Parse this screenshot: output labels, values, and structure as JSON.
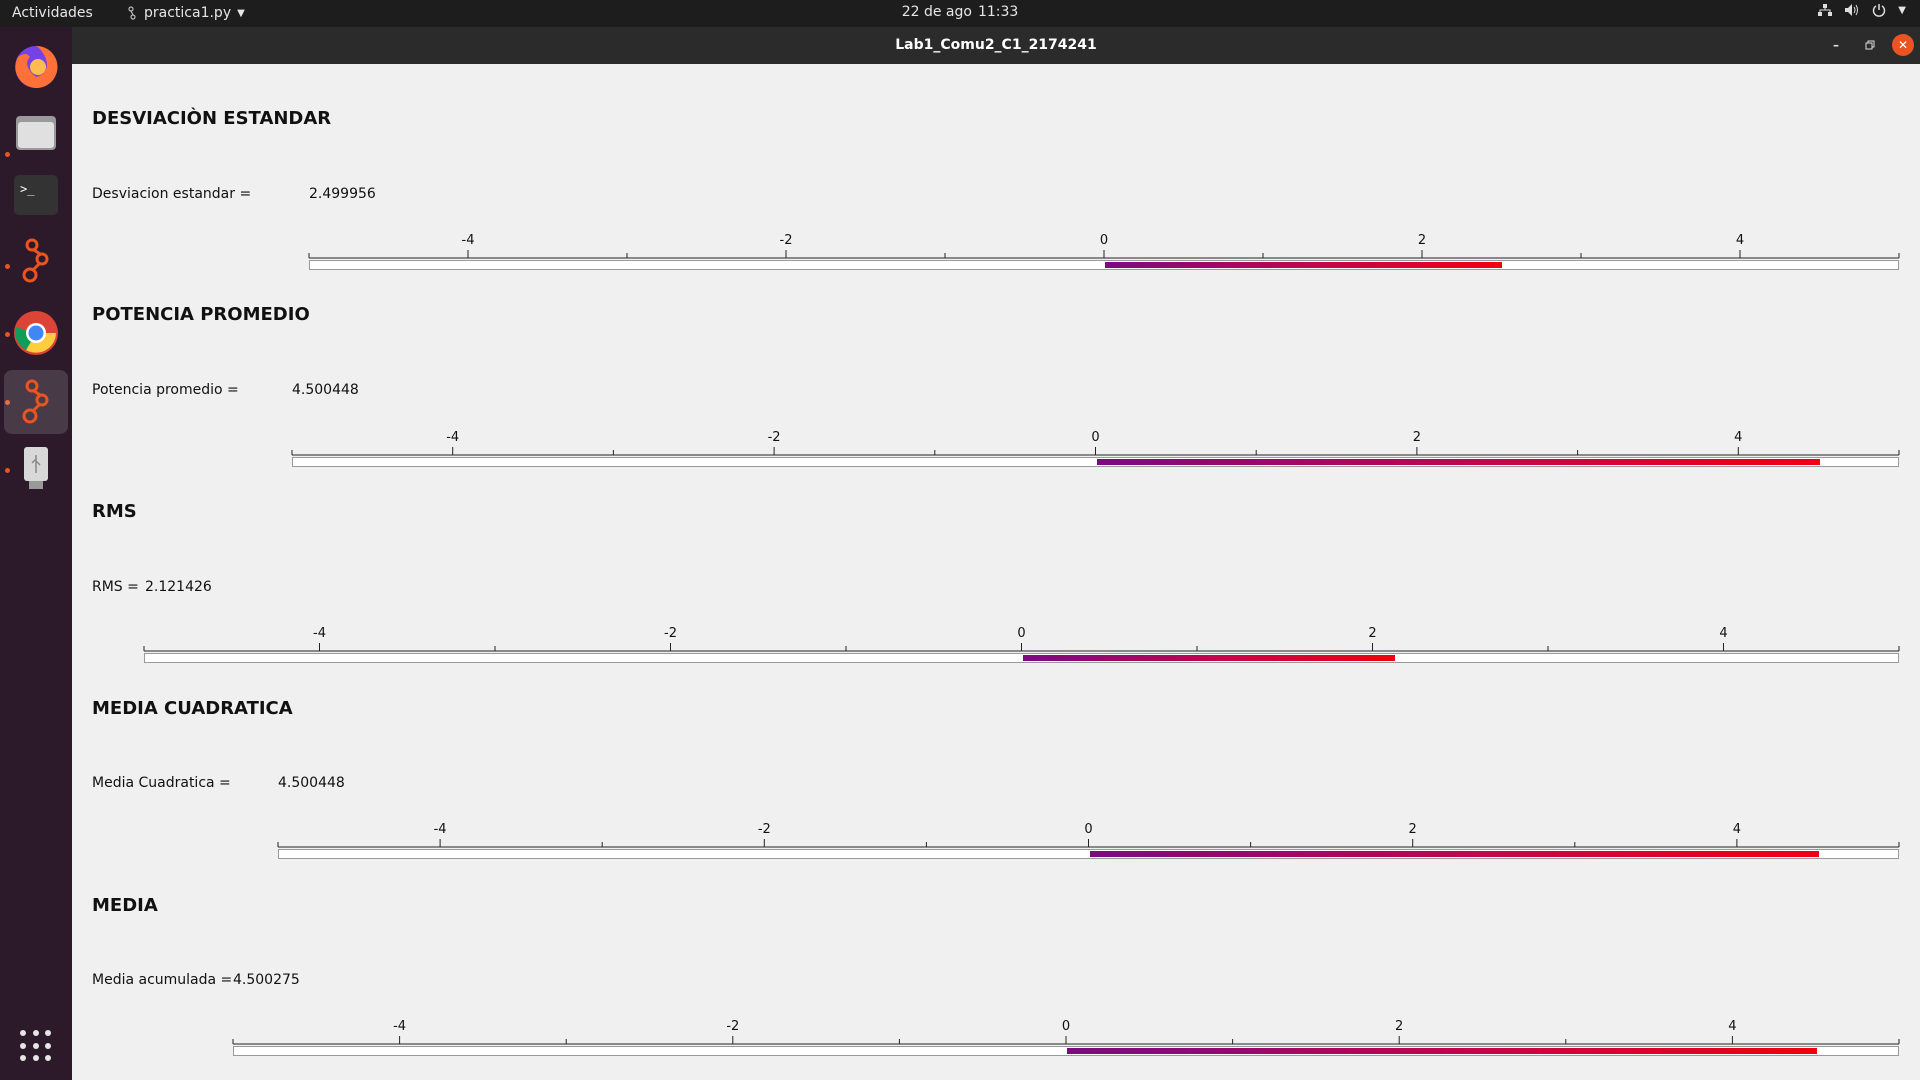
{
  "topbar": {
    "activities": "Actividades",
    "app_menu": "practica1.py",
    "date": "22 de ago",
    "time": "11:33"
  },
  "window": {
    "title": "Lab1_Comu2_C1_2174241"
  },
  "dock": {
    "items": [
      "firefox-icon",
      "files-icon",
      "terminal-icon",
      "gnuradio-icon",
      "chrome-icon",
      "gnuradio-companion-icon",
      "usb-drive-icon"
    ],
    "accent": "#e95420"
  },
  "scale_ticks": [
    "-4",
    "-2",
    "0",
    "2",
    "4"
  ],
  "scale_range": [
    -5,
    5
  ],
  "sections": [
    {
      "heading": "DESVIACIÒN ESTANDAR",
      "label": "Desviacion estandar =",
      "value": "2.499956",
      "level": 2.499956
    },
    {
      "heading": "POTENCIA PROMEDIO",
      "label": "Potencia promedio =",
      "value": "4.500448",
      "level": 4.500448
    },
    {
      "heading": "RMS",
      "label": "RMS =",
      "value": "2.121426",
      "level": 2.121426
    },
    {
      "heading": "MEDIA CUADRATICA",
      "label": "Media Cuadratica =",
      "value": "4.500448",
      "level": 4.500448
    },
    {
      "heading": "MEDIA",
      "label": "Media acumulada =",
      "value": "4.500275",
      "level": 4.500275
    }
  ]
}
